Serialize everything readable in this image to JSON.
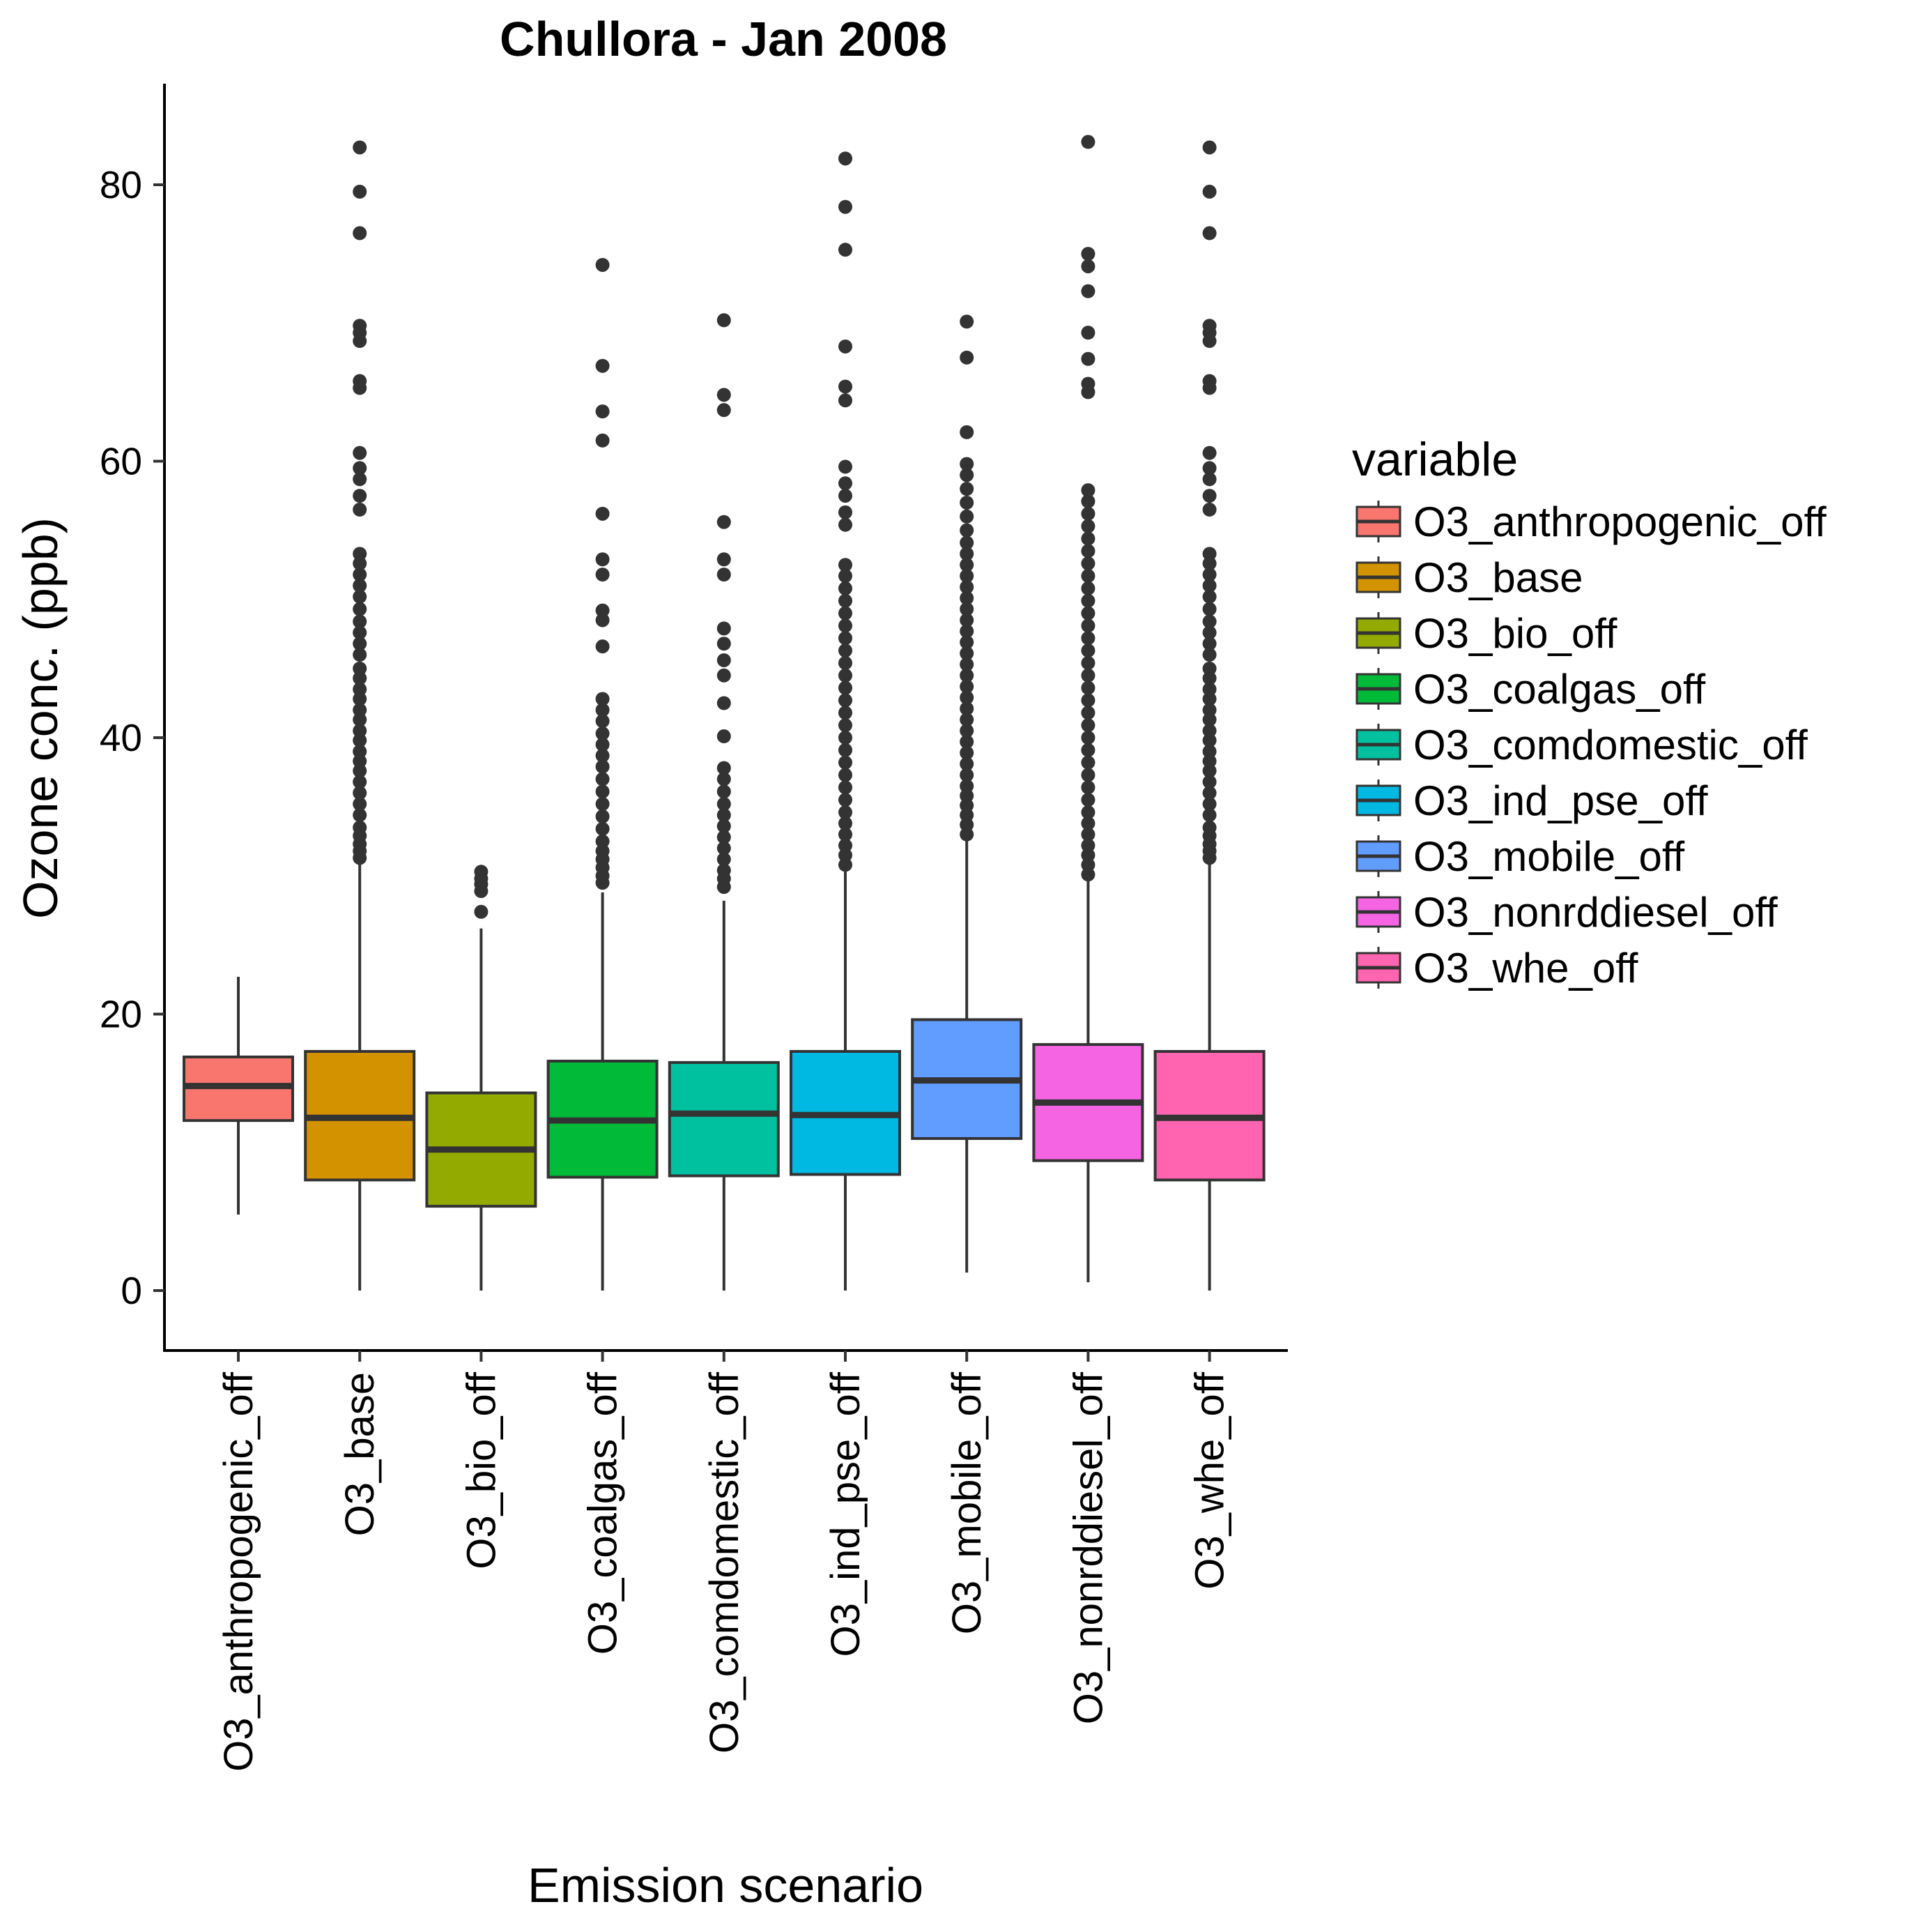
{
  "chart_data": {
    "type": "box",
    "title": "Chullora  -  Jan 2008",
    "xlabel": "Emission scenario",
    "ylabel": "Ozone conc. (ppb)",
    "ylim": [
      -4,
      87
    ],
    "yticks": [
      0,
      20,
      40,
      60,
      80
    ],
    "grid": false,
    "legend_title": "variable",
    "legend_position": "right",
    "series": [
      {
        "name": "O3_anthropogenic_off",
        "color": "#F8766D",
        "whisker_low": 5.5,
        "q1": 12.3,
        "median": 14.8,
        "q3": 16.9,
        "whisker_high": 22.7,
        "outliers": []
      },
      {
        "name": "O3_base",
        "color": "#D39200",
        "whisker_low": 0,
        "q1": 8.0,
        "median": 12.5,
        "q3": 17.3,
        "whisker_high": 31.0,
        "outliers": [
          31.3,
          31.8,
          32.3,
          32.9,
          33.5,
          34.4,
          35.2,
          36.0,
          36.8,
          37.6,
          38.3,
          39.0,
          39.8,
          40.5,
          41.3,
          42.0,
          42.8,
          43.5,
          44.3,
          45.0,
          46.0,
          46.8,
          47.6,
          48.4,
          49.3,
          50.2,
          51.0,
          51.8,
          52.6,
          53.3,
          56.5,
          57.5,
          58.7,
          59.5,
          60.6,
          65.3,
          65.8,
          68.7,
          69.3,
          69.8,
          76.5,
          79.5,
          82.7
        ]
      },
      {
        "name": "O3_bio_off",
        "color": "#93AA00",
        "whisker_low": 0,
        "q1": 6.1,
        "median": 10.2,
        "q3": 14.3,
        "whisker_high": 26.2,
        "outliers": [
          27.4,
          28.9,
          29.4,
          29.8,
          30.3
        ]
      },
      {
        "name": "O3_coalgas_off",
        "color": "#00BA38",
        "whisker_low": 0,
        "q1": 8.2,
        "median": 12.3,
        "q3": 16.6,
        "whisker_high": 28.8,
        "outliers": [
          29.5,
          30.0,
          30.6,
          31.2,
          31.8,
          32.5,
          33.4,
          34.3,
          35.2,
          36.1,
          37.0,
          37.9,
          38.7,
          39.5,
          40.3,
          41.2,
          42.0,
          42.8,
          46.6,
          48.5,
          49.2,
          51.8,
          52.9,
          56.2,
          61.5,
          63.6,
          66.9,
          74.2
        ]
      },
      {
        "name": "O3_comdomestic_off",
        "color": "#00C19F",
        "whisker_low": 0,
        "q1": 8.3,
        "median": 12.8,
        "q3": 16.5,
        "whisker_high": 28.2,
        "outliers": [
          29.2,
          29.8,
          30.4,
          31.2,
          32.0,
          32.8,
          33.6,
          34.4,
          35.2,
          36.1,
          37.0,
          37.8,
          40.1,
          42.5,
          44.5,
          45.6,
          46.8,
          47.9,
          51.8,
          52.9,
          55.6,
          63.7,
          64.8,
          70.2
        ]
      },
      {
        "name": "O3_ind_pse_off",
        "color": "#00B9E3",
        "whisker_low": 0,
        "q1": 8.4,
        "median": 12.7,
        "q3": 17.3,
        "whisker_high": 30.3,
        "outliers": [
          30.8,
          31.5,
          32.2,
          33.0,
          33.8,
          34.6,
          35.5,
          36.4,
          37.3,
          38.2,
          39.1,
          40.0,
          40.9,
          41.8,
          42.7,
          43.6,
          44.5,
          45.4,
          46.3,
          47.2,
          48.1,
          49.0,
          49.9,
          50.8,
          51.7,
          52.5,
          55.4,
          56.3,
          57.5,
          58.4,
          59.6,
          64.4,
          65.4,
          68.3,
          75.3,
          78.4,
          81.9
        ]
      },
      {
        "name": "O3_mobile_off",
        "color": "#619CFF",
        "whisker_low": 1.3,
        "q1": 11.0,
        "median": 15.2,
        "q3": 19.6,
        "whisker_high": 32.6,
        "outliers": [
          33.0,
          33.7,
          34.4,
          35.1,
          35.8,
          36.5,
          37.3,
          38.1,
          38.9,
          39.7,
          40.5,
          41.3,
          42.1,
          42.9,
          43.7,
          44.5,
          45.3,
          46.1,
          46.9,
          47.7,
          48.5,
          49.3,
          50.1,
          50.9,
          51.7,
          52.5,
          53.3,
          54.1,
          55.0,
          56.0,
          57.0,
          58.0,
          59.0,
          59.8,
          62.1,
          67.5,
          70.1
        ]
      },
      {
        "name": "O3_nonrddiesel_off",
        "color": "#F564E3",
        "whisker_low": 0.6,
        "q1": 9.4,
        "median": 13.6,
        "q3": 17.8,
        "whisker_high": 29.8,
        "outliers": [
          30.1,
          30.8,
          31.5,
          32.2,
          33.0,
          33.8,
          34.6,
          35.5,
          36.4,
          37.3,
          38.2,
          39.1,
          40.0,
          40.9,
          41.8,
          42.7,
          43.6,
          44.5,
          45.4,
          46.3,
          47.2,
          48.1,
          49.0,
          49.9,
          50.8,
          51.7,
          52.6,
          53.5,
          54.4,
          55.3,
          56.2,
          57.1,
          57.9,
          65.0,
          65.6,
          67.4,
          69.3,
          72.3,
          74.1,
          75.0,
          83.1
        ]
      },
      {
        "name": "O3_whe_off",
        "color": "#FF64B0",
        "whisker_low": 0,
        "q1": 8.0,
        "median": 12.5,
        "q3": 17.3,
        "whisker_high": 31.0,
        "outliers": [
          31.3,
          31.8,
          32.3,
          32.9,
          33.5,
          34.4,
          35.2,
          36.0,
          36.8,
          37.6,
          38.3,
          39.0,
          39.8,
          40.5,
          41.3,
          42.0,
          42.8,
          43.5,
          44.3,
          45.0,
          46.0,
          46.8,
          47.6,
          48.4,
          49.3,
          50.2,
          51.0,
          51.8,
          52.6,
          53.3,
          56.5,
          57.5,
          58.7,
          59.5,
          60.6,
          65.3,
          65.8,
          68.7,
          69.3,
          69.8,
          76.5,
          79.5,
          82.7
        ]
      }
    ]
  }
}
